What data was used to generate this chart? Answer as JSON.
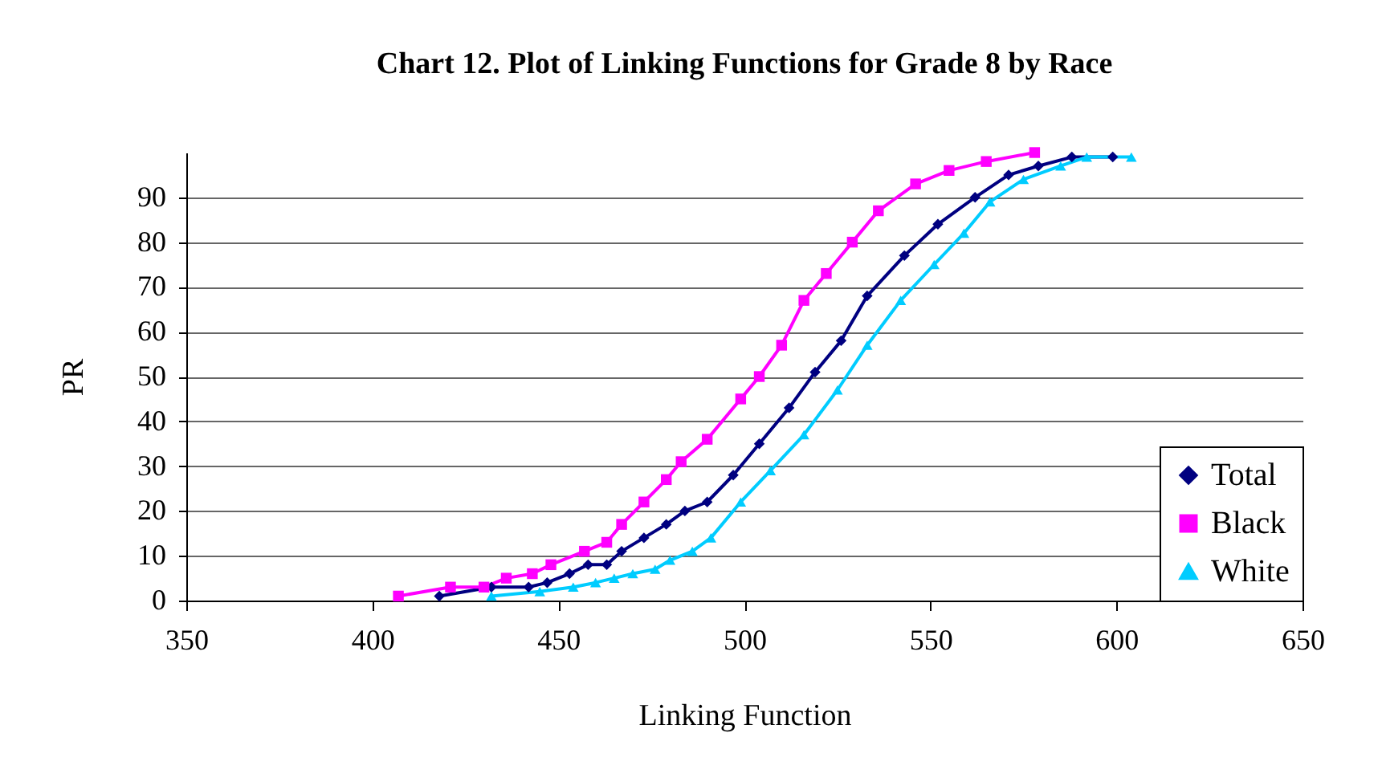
{
  "chart_data": {
    "type": "line",
    "title": "Chart 12.  Plot of Linking Functions for Grade 8 by Race",
    "xlabel": "Linking Function",
    "ylabel": "PR",
    "xlim": [
      350,
      650
    ],
    "xticks": [
      350,
      400,
      450,
      500,
      550,
      600,
      650
    ],
    "ylim": [
      0,
      100
    ],
    "yticks": [
      0,
      10,
      20,
      30,
      40,
      50,
      60,
      70,
      80,
      90
    ],
    "grid": "y",
    "legend": "bottom right",
    "series": [
      {
        "name": "Total",
        "color": "#000080",
        "marker": "diamond",
        "x": [
          418,
          432,
          442,
          447,
          453,
          458,
          463,
          467,
          473,
          479,
          484,
          490,
          497,
          504,
          512,
          519,
          526,
          533,
          543,
          552,
          562,
          571,
          579,
          588,
          599
        ],
        "values": [
          1,
          3,
          3,
          4,
          6,
          8,
          8,
          11,
          14,
          17,
          20,
          22,
          28,
          35,
          43,
          51,
          58,
          68,
          77,
          84,
          90,
          95,
          97,
          99,
          99
        ]
      },
      {
        "name": "Black",
        "color": "#ff00ff",
        "marker": "square",
        "x": [
          407,
          421,
          430,
          436,
          443,
          448,
          457,
          463,
          467,
          473,
          479,
          483,
          490,
          499,
          504,
          510,
          516,
          522,
          529,
          536,
          546,
          555,
          565,
          578
        ],
        "values": [
          1,
          3,
          3,
          5,
          6,
          8,
          11,
          13,
          17,
          22,
          27,
          31,
          36,
          45,
          50,
          57,
          67,
          73,
          80,
          87,
          93,
          96,
          98,
          100
        ]
      },
      {
        "name": "White",
        "color": "#00ccff",
        "marker": "triangle",
        "x": [
          432,
          445,
          454,
          460,
          465,
          470,
          476,
          480,
          486,
          491,
          499,
          507,
          516,
          525,
          533,
          542,
          551,
          559,
          566,
          575,
          585,
          592,
          604
        ],
        "values": [
          1,
          2,
          3,
          4,
          5,
          6,
          7,
          9,
          11,
          14,
          22,
          29,
          37,
          47,
          57,
          67,
          75,
          82,
          89,
          94,
          97,
          99,
          99
        ]
      }
    ]
  }
}
